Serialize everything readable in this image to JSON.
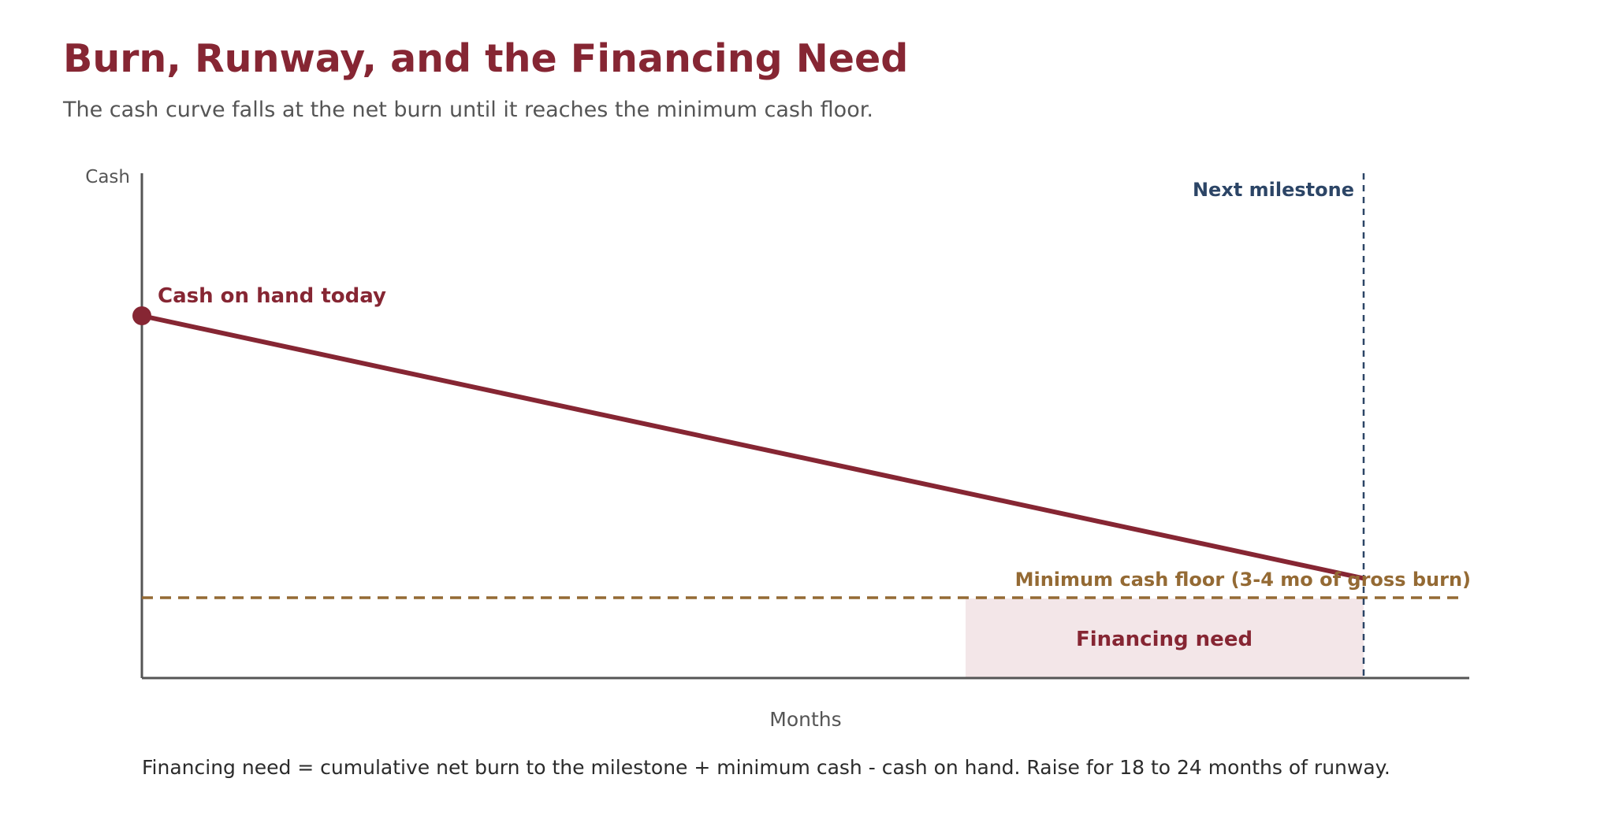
{
  "header": {
    "title": "Burn, Runway, and the Financing Need",
    "subtitle": "The cash curve falls at the net burn until it reaches the minimum cash floor."
  },
  "axes": {
    "y_label": "Cash",
    "x_label": "Months"
  },
  "labels": {
    "cash_today": "Cash on hand today",
    "milestone": "Next milestone",
    "min_cash_floor": "Minimum cash floor (3-4 mo of gross burn)",
    "financing_need": "Financing need"
  },
  "footnote": "Financing need = cumulative net burn to the milestone + minimum cash - cash on hand. Raise for 18 to 24 months of runway.",
  "colors": {
    "cash_line": "#862633",
    "floor_line": "#946a34",
    "milestone_line": "#2c4566",
    "financing_fill": "#f3e6e8",
    "axis": "#555555"
  }
}
